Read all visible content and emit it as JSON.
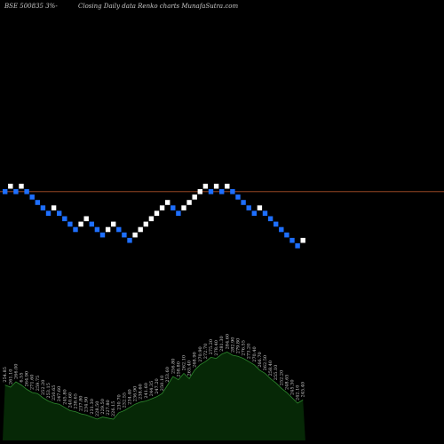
{
  "header": {
    "title": "BSE 500835 3%- ",
    "caption": "Closing Daily data  Renko  charts MunafaSutra.com"
  },
  "colors": {
    "background": "#000000",
    "up_brick": "#ffffff",
    "down_brick": "#1e6fff",
    "ref_line": "#b0522a",
    "volume_fill": "#062806",
    "volume_line": "#2e8b2e"
  },
  "chart_data": {
    "type": "renko",
    "brick_directions": [
      "down",
      "up",
      "down",
      "up",
      "down",
      "down",
      "down",
      "down",
      "down",
      "up",
      "down",
      "down",
      "down",
      "down",
      "up",
      "up",
      "down",
      "down",
      "down",
      "up",
      "up",
      "down",
      "down",
      "down",
      "up",
      "up",
      "up",
      "up",
      "up",
      "up",
      "up",
      "down",
      "down",
      "up",
      "up",
      "up",
      "up",
      "up",
      "down",
      "up",
      "down",
      "up",
      "down",
      "down",
      "down",
      "down",
      "down",
      "up",
      "down",
      "down",
      "down",
      "down",
      "down",
      "down",
      "down",
      "up"
    ],
    "brick_levels": [
      0,
      1,
      0,
      1,
      0,
      -1,
      -2,
      -3,
      -4,
      -3,
      -4,
      -5,
      -6,
      -7,
      -6,
      -5,
      -6,
      -7,
      -8,
      -7,
      -6,
      -7,
      -8,
      -9,
      -8,
      -7,
      -6,
      -5,
      -4,
      -3,
      -2,
      -3,
      -4,
      -3,
      -2,
      -1,
      0,
      1,
      0,
      1,
      0,
      1,
      0,
      -1,
      -2,
      -3,
      -4,
      -3,
      -4,
      -5,
      -6,
      -7,
      -8,
      -9,
      -10,
      -9
    ],
    "reference_level": 0,
    "volume_labels": [
      "254.85",
      "261.10",
      "266.00",
      "6.55",
      "264.90",
      "271.60",
      "259.75",
      "252.20",
      "253.15",
      "250.65",
      "247.60",
      "245.80",
      "240.60",
      "238.65",
      "237.80",
      "234.90",
      "231.30",
      "228.50",
      "229.50",
      "227.80",
      "226.15",
      "230.70",
      "232.55",
      "234.40",
      "236.90",
      "238.60",
      "241.60",
      "244.35",
      "247.20",
      "250.10",
      "253.60",
      "256.80",
      "258.80",
      "262.10",
      "265.40",
      "268.90",
      "270.90",
      "272.70",
      "275.20",
      "278.40",
      "281.30",
      "284.60",
      "282.90",
      "279.80",
      "276.55",
      "273.20",
      "270.40",
      "266.70",
      "262.50",
      "258.40",
      "255.10",
      "252.20",
      "248.65",
      "245.30",
      "242.10",
      "245.40"
    ],
    "volume_values": [
      0.52,
      0.5,
      0.55,
      0.52,
      0.48,
      0.45,
      0.44,
      0.4,
      0.37,
      0.35,
      0.34,
      0.31,
      0.28,
      0.27,
      0.25,
      0.24,
      0.22,
      0.2,
      0.22,
      0.21,
      0.2,
      0.26,
      0.28,
      0.31,
      0.34,
      0.36,
      0.37,
      0.39,
      0.41,
      0.44,
      0.52,
      0.6,
      0.57,
      0.63,
      0.58,
      0.66,
      0.71,
      0.74,
      0.78,
      0.77,
      0.81,
      0.83,
      0.8,
      0.79,
      0.77,
      0.74,
      0.71,
      0.66,
      0.63,
      0.58,
      0.54,
      0.49,
      0.45,
      0.4,
      0.35,
      0.38
    ]
  }
}
